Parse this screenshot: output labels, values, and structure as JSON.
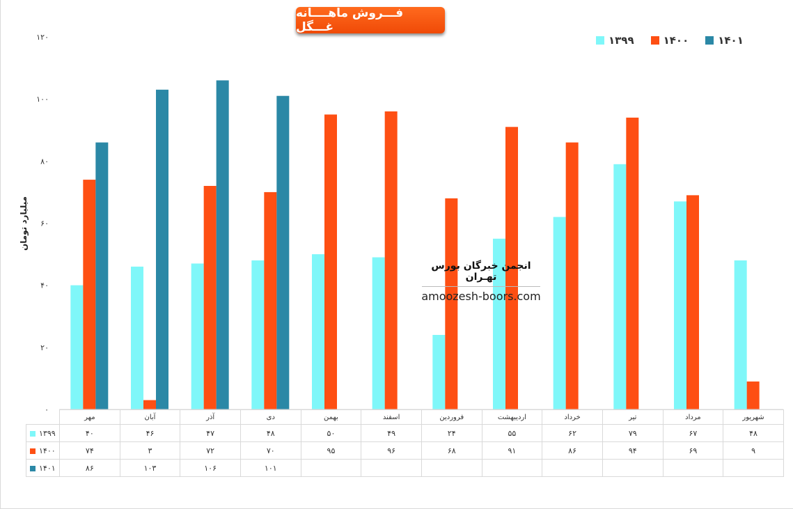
{
  "chart_data": {
    "type": "bar",
    "title": "فـــروش ماهــــانه غـــگل",
    "ylabel": "میلیارد تومان",
    "xlabel": "",
    "ylim": [
      0,
      120
    ],
    "ytick_labels": [
      "۰",
      "۲۰",
      "۴۰",
      "۶۰",
      "۸۰",
      "۱۰۰",
      "۱۲۰"
    ],
    "grid": false,
    "legend_position": "top-right",
    "categories": [
      "مهر",
      "آبان",
      "آذر",
      "دی",
      "بهمن",
      "اسفند",
      "فروردین",
      "اردیبهشت",
      "خرداد",
      "تیر",
      "مرداد",
      "شهریور"
    ],
    "series": [
      {
        "name": "۱۳۹۹",
        "color": "#7ff7f9",
        "values": [
          40,
          46,
          47,
          48,
          50,
          49,
          24,
          55,
          62,
          79,
          67,
          48
        ],
        "value_labels": [
          "۴۰",
          "۴۶",
          "۴۷",
          "۴۸",
          "۵۰",
          "۴۹",
          "۲۴",
          "۵۵",
          "۶۲",
          "۷۹",
          "۶۷",
          "۴۸"
        ]
      },
      {
        "name": "۱۴۰۰",
        "color": "#fe4f13",
        "values": [
          74,
          3,
          72,
          70,
          95,
          96,
          68,
          91,
          86,
          94,
          69,
          9
        ],
        "value_labels": [
          "۷۴",
          "۳",
          "۷۲",
          "۷۰",
          "۹۵",
          "۹۶",
          "۶۸",
          "۹۱",
          "۸۶",
          "۹۴",
          "۶۹",
          "۹"
        ]
      },
      {
        "name": "۱۴۰۱",
        "color": "#2b88a6",
        "values": [
          86,
          103,
          106,
          101,
          null,
          null,
          null,
          null,
          null,
          null,
          null,
          null
        ],
        "value_labels": [
          "۸۶",
          "۱۰۳",
          "۱۰۶",
          "۱۰۱",
          "",
          "",
          "",
          "",
          "",
          "",
          "",
          ""
        ]
      }
    ]
  },
  "watermark": {
    "title": "انجمن خبرگان بورس تهـران",
    "url": "amoozesh-boors.com"
  }
}
